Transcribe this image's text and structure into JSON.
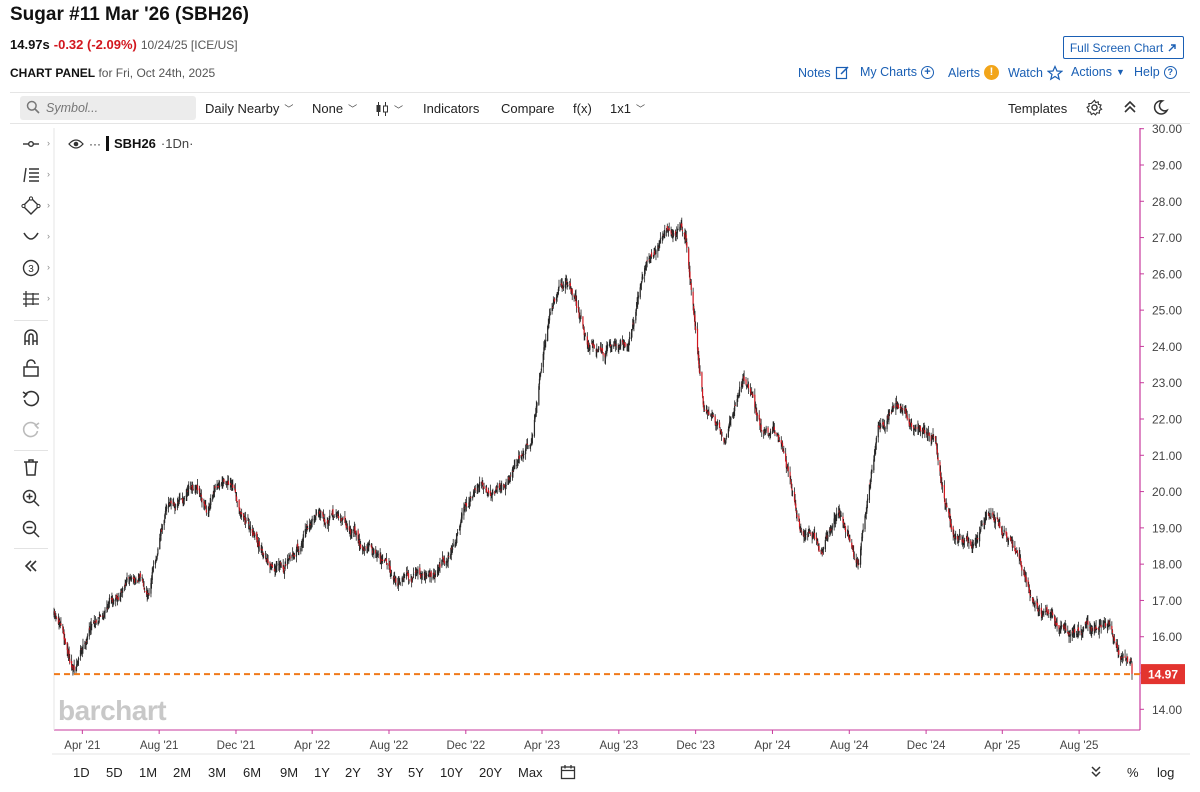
{
  "header": {
    "title": "Sugar #11 Mar '26 (SBH26)",
    "last": "14.97s",
    "change": "-0.32 (-2.09%)",
    "quote_date": "10/24/25 [ICE/US]",
    "fullscreen_label": "Full Screen Chart",
    "panel_label": "CHART PANEL",
    "panel_for": "for Fri, Oct 24th, 2025"
  },
  "top_links": {
    "notes": "Notes",
    "my_charts": "My Charts",
    "alerts": "Alerts",
    "watch": "Watch",
    "actions": "Actions",
    "help": "Help"
  },
  "toolbar": {
    "symbol_placeholder": "Symbol...",
    "period": "Daily Nearby",
    "overlay": "None",
    "indicators": "Indicators",
    "compare": "Compare",
    "fx": "f(x)",
    "layout": "1x1",
    "templates": "Templates"
  },
  "legend": {
    "symbol": "SBH26",
    "interval": "·1Dn·"
  },
  "watermark": "barchart",
  "range_buttons": [
    "1D",
    "5D",
    "1M",
    "2M",
    "3M",
    "6M",
    "9M",
    "1Y",
    "2Y",
    "3Y",
    "5Y",
    "10Y",
    "20Y",
    "Max"
  ],
  "scale_buttons": {
    "percent": "%",
    "log": "log"
  },
  "colors": {
    "up": "#1e8a4c",
    "down": "#d2161e",
    "last_line": "#f07a1a",
    "price_tag": "#e3342f",
    "link": "#1a5fb4",
    "right_axis": "#c73a9c"
  },
  "chart_data": {
    "type": "line",
    "style": "candlestick",
    "symbol": "SBH26",
    "last_price": 14.97,
    "last_price_label": "14.97",
    "ylim": [
      13.7,
      30.2
    ],
    "y_ticks": [
      "14.00",
      "15.00",
      "16.00",
      "17.00",
      "18.00",
      "19.00",
      "20.00",
      "21.00",
      "22.00",
      "23.00",
      "24.00",
      "25.00",
      "26.00",
      "27.00",
      "28.00",
      "29.00",
      "30.00"
    ],
    "x_ticks": [
      "Apr '21",
      "Aug '21",
      "Dec '21",
      "Apr '22",
      "Aug '22",
      "Dec '22",
      "Apr '23",
      "Aug '23",
      "Dec '23",
      "Apr '24",
      "Aug '24",
      "Dec '24",
      "Apr '25",
      "Aug '25"
    ],
    "grid": false,
    "series": [
      {
        "x": [
          "2021-02-15",
          "2021-03-20",
          "2021-04-15",
          "2021-05-15",
          "2021-06-15",
          "2021-07-15",
          "2021-08-15",
          "2021-09-15",
          "2021-10-15",
          "2021-11-15",
          "2021-12-15",
          "2022-01-15",
          "2022-02-15",
          "2022-03-15",
          "2022-04-15",
          "2022-05-15",
          "2022-06-15",
          "2022-07-15",
          "2022-08-15",
          "2022-09-15",
          "2022-10-15",
          "2022-11-15",
          "2022-12-15",
          "2023-01-15",
          "2023-02-15",
          "2023-03-15",
          "2023-04-15",
          "2023-05-15",
          "2023-06-15",
          "2023-07-15",
          "2023-08-15",
          "2023-09-15",
          "2023-10-15",
          "2023-11-15",
          "2023-12-15",
          "2024-01-15",
          "2024-02-15",
          "2024-03-15",
          "2024-04-15",
          "2024-05-15",
          "2024-06-15",
          "2024-07-15",
          "2024-08-15",
          "2024-09-15",
          "2024-10-15",
          "2024-11-15",
          "2024-12-15",
          "2025-01-15",
          "2025-02-15",
          "2025-03-15",
          "2025-04-15",
          "2025-05-15",
          "2025-06-15",
          "2025-07-15",
          "2025-08-15",
          "2025-09-15",
          "2025-10-24"
        ],
        "values": [
          16.6,
          15.0,
          16.4,
          17.1,
          17.6,
          17.4,
          19.6,
          19.9,
          19.6,
          20.2,
          19.3,
          18.4,
          17.8,
          18.7,
          19.6,
          19.3,
          18.6,
          18.3,
          17.7,
          17.8,
          17.6,
          18.8,
          19.8,
          20.1,
          20.8,
          21.5,
          25.2,
          25.7,
          24.0,
          23.9,
          24.2,
          26.2,
          27.2,
          27.1,
          22.3,
          21.5,
          23.3,
          21.6,
          21.4,
          19.2,
          18.3,
          19.3,
          18.0,
          21.7,
          22.4,
          21.7,
          21.2,
          18.8,
          18.5,
          19.4,
          18.6,
          17.4,
          16.5,
          16.1,
          16.4,
          16.3,
          14.97
        ]
      }
    ]
  }
}
